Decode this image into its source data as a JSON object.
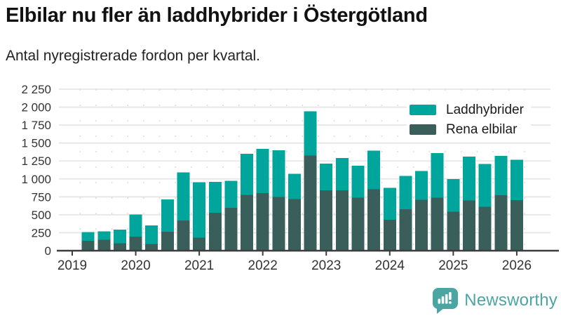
{
  "title": "Elbilar nu fler än laddhybrider i Östergötland",
  "subtitle": "Antal nyregistrerade fordon per kvartal.",
  "legend": {
    "items": [
      {
        "label": "Laddhybrider",
        "color": "#00A69B"
      },
      {
        "label": "Rena elbilar",
        "color": "#3A5E59"
      }
    ]
  },
  "footer": {
    "brand": "Newsworthy",
    "logo_icon": "bar-chart-speech-bubble-icon",
    "color": "#4BA6A3"
  },
  "colors": {
    "laddhybrider": "#00A69B",
    "rena_elbilar": "#3A5E59",
    "gridline": "#E6E6E6",
    "minor_gridline": "#DCDCDC",
    "axis": "#3C3C3C",
    "tick_label": "#333333",
    "background": "#FFFFFF"
  },
  "chart_data": {
    "type": "bar",
    "stacked": true,
    "title": "Elbilar nu fler än laddhybrider i Östergötland",
    "subtitle": "Antal nyregistrerade fordon per kvartal.",
    "xlabel": "",
    "ylabel": "",
    "ylim": [
      0,
      2250
    ],
    "y_tick_step": 250,
    "grid": true,
    "legend_position": "top-right",
    "x_tick_labels": [
      "2019",
      "2020",
      "2021",
      "2022",
      "2023",
      "2024",
      "2025",
      "2026"
    ],
    "y_tick_labels": [
      "0",
      "250",
      "500",
      "750",
      "1 000",
      "1 250",
      "1 500",
      "1 750",
      "2 000",
      "2 250"
    ],
    "categories": [
      "2019 Q2",
      "2019 Q3",
      "2019 Q4",
      "2020 Q1",
      "2020 Q2",
      "2020 Q3",
      "2020 Q4",
      "2021 Q1",
      "2021 Q2",
      "2021 Q3",
      "2021 Q4",
      "2022 Q1",
      "2022 Q2",
      "2022 Q3",
      "2022 Q4",
      "2023 Q1",
      "2023 Q2",
      "2023 Q3",
      "2023 Q4",
      "2024 Q1",
      "2024 Q2",
      "2024 Q3",
      "2024 Q4",
      "2025 Q1",
      "2025 Q2",
      "2025 Q3",
      "2025 Q4",
      "2026 Q1"
    ],
    "series": [
      {
        "name": "Rena elbilar",
        "color": "#3A5E59",
        "values": [
          135,
          150,
          105,
          195,
          95,
          265,
          420,
          180,
          530,
          595,
          780,
          800,
          750,
          720,
          1325,
          840,
          840,
          740,
          855,
          430,
          575,
          710,
          740,
          545,
          700,
          610,
          775,
          705
        ]
      },
      {
        "name": "Laddhybrider",
        "color": "#00A69B",
        "values": [
          125,
          120,
          190,
          310,
          255,
          450,
          670,
          775,
          430,
          380,
          570,
          620,
          650,
          350,
          615,
          375,
          450,
          445,
          540,
          445,
          465,
          400,
          620,
          455,
          610,
          600,
          545,
          560
        ]
      }
    ]
  }
}
